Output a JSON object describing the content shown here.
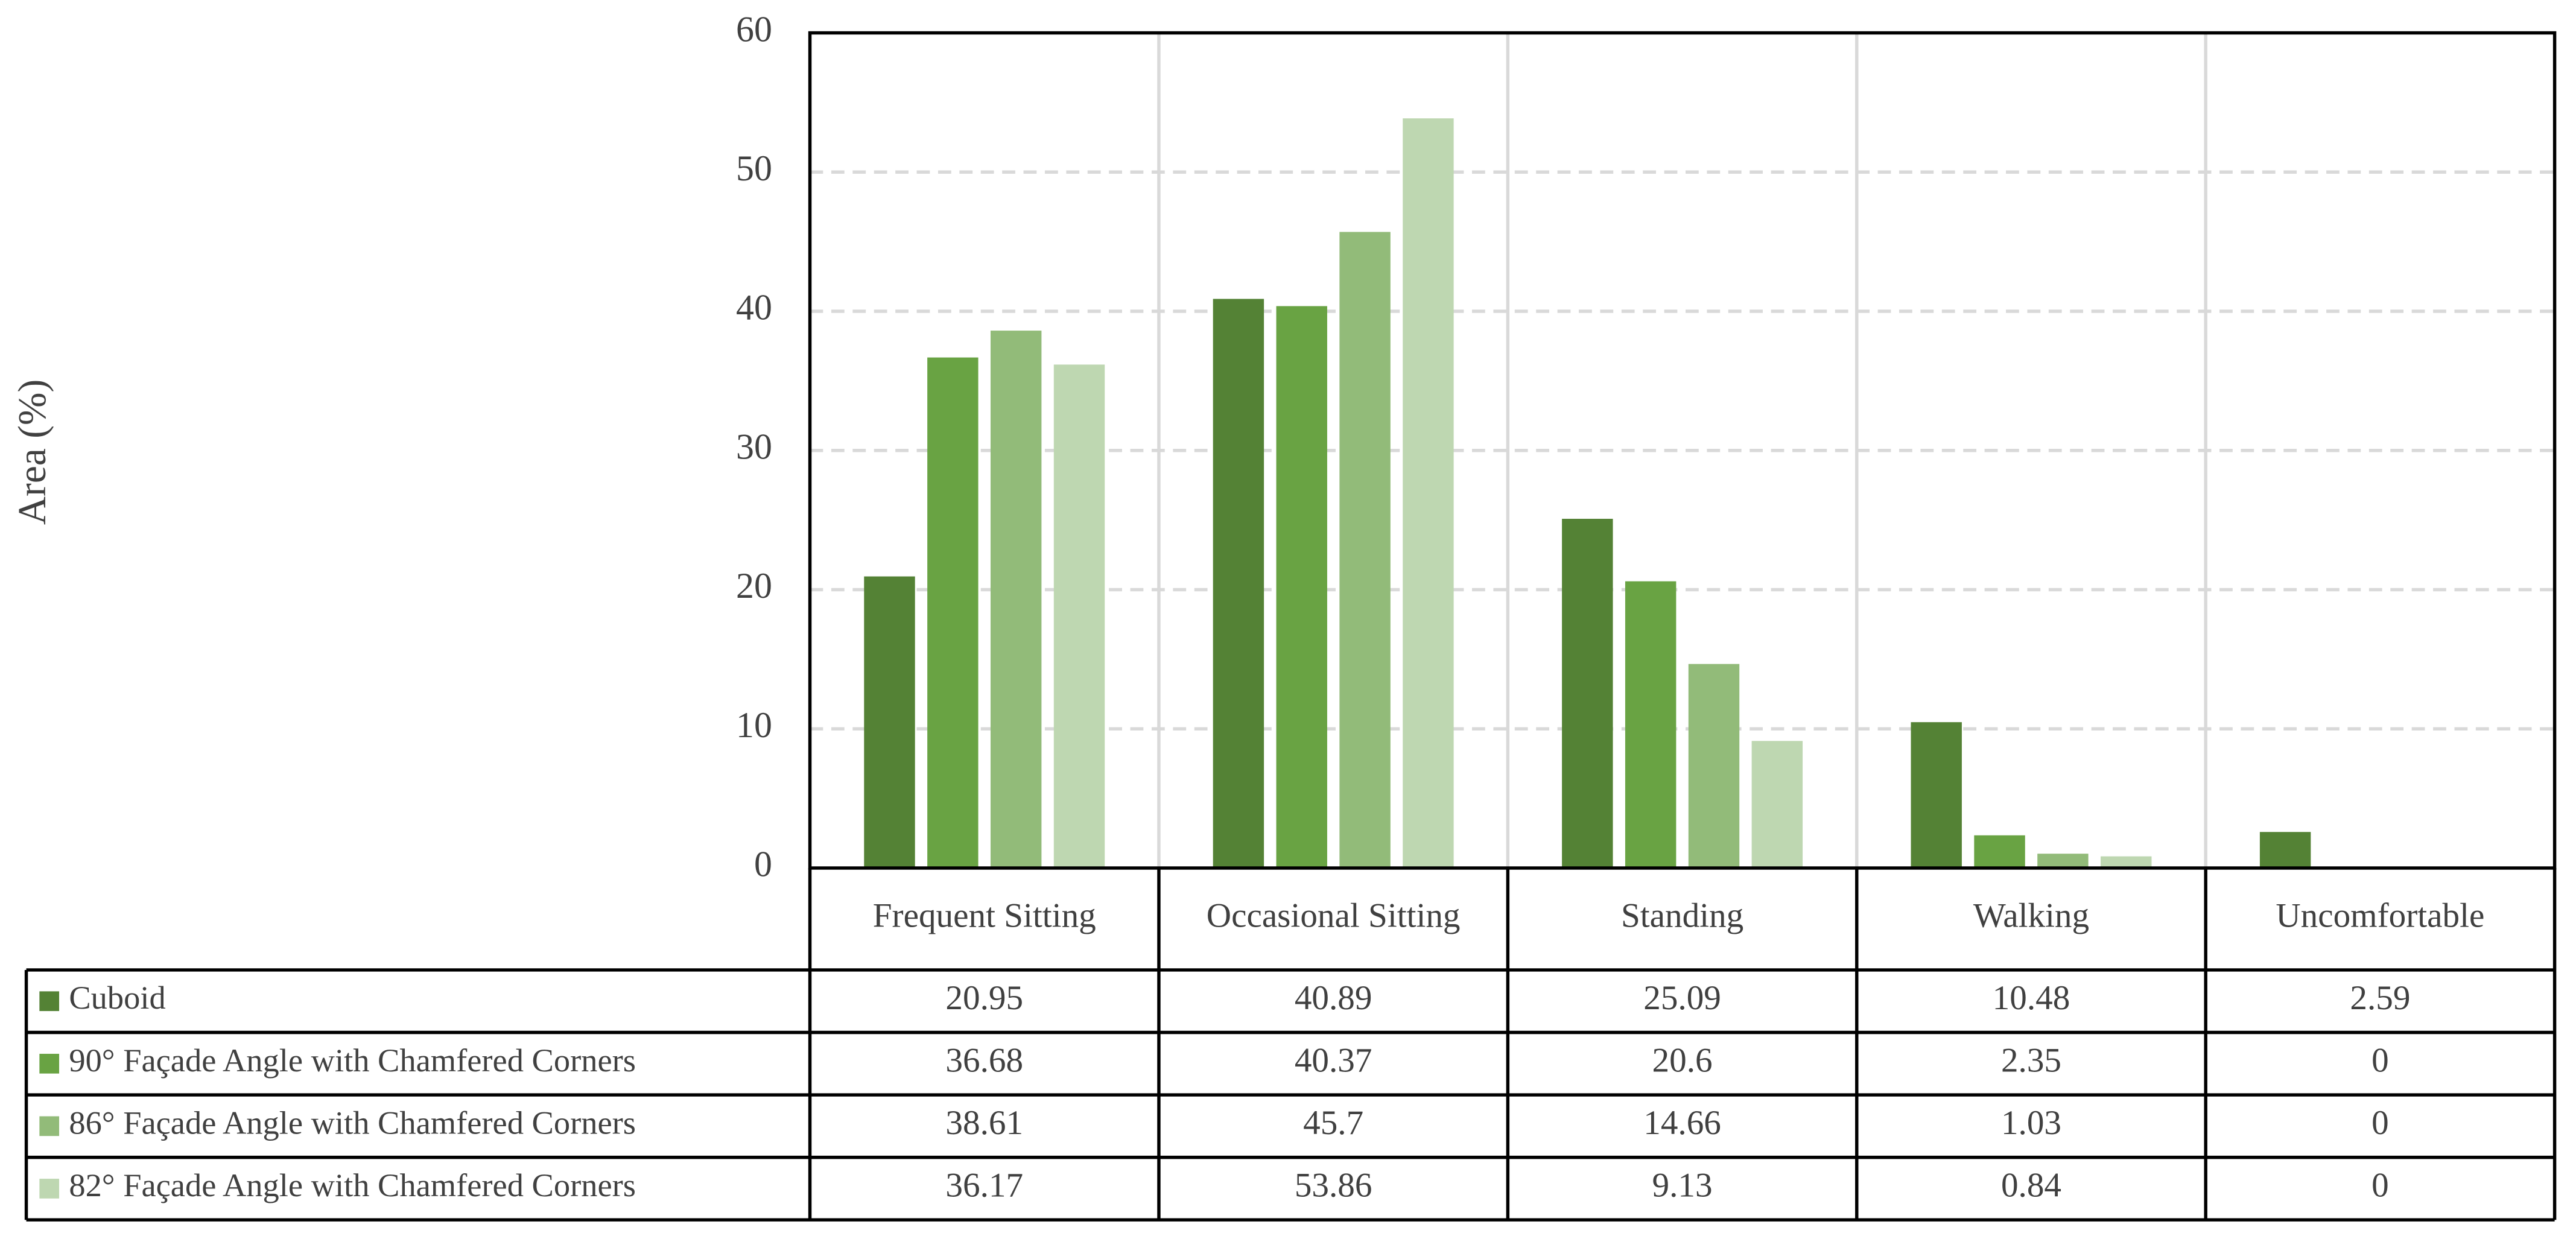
{
  "chart_data": {
    "type": "bar",
    "y_label": "Area (%)",
    "categories": [
      "Frequent Sitting",
      "Occasional Sitting",
      "Standing",
      "Walking",
      "Uncomfortable"
    ],
    "series": [
      {
        "name": "Cuboid",
        "color": "#548235",
        "values": [
          20.95,
          40.89,
          25.09,
          10.48,
          2.59
        ]
      },
      {
        "name": "90° Façade Angle with Chamfered Corners",
        "color": "#69a343",
        "values": [
          36.68,
          40.37,
          20.6,
          2.35,
          0
        ]
      },
      {
        "name": "86° Façade Angle with Chamfered Corners",
        "color": "#92bb79",
        "values": [
          38.61,
          45.7,
          14.66,
          1.03,
          0
        ]
      },
      {
        "name": "82° Façade Angle with Chamfered Corners",
        "color": "#bed7b1",
        "values": [
          36.17,
          53.86,
          9.13,
          0.84,
          0
        ]
      }
    ],
    "ylim": [
      0,
      60
    ],
    "yticks": [
      0,
      10,
      20,
      30,
      40,
      50,
      60
    ],
    "grid": true,
    "data_table": true
  }
}
